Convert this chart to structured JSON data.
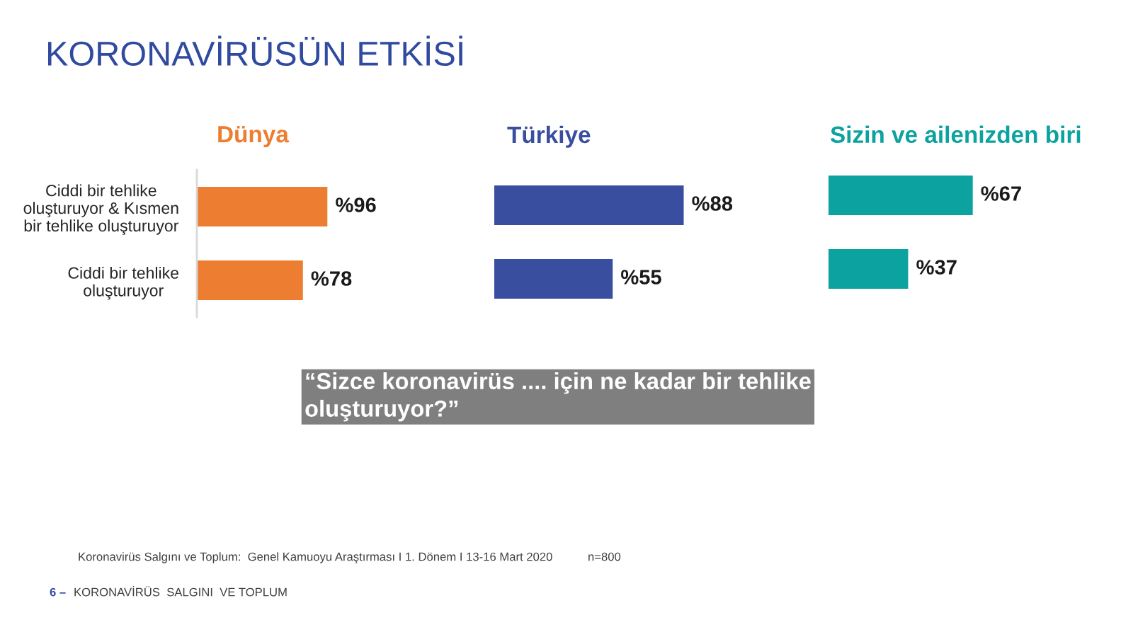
{
  "chart_data": [
    {
      "type": "bar",
      "orientation": "horizontal",
      "title": "Dünya",
      "categories": [
        "Ciddi bir tehlike\noluşturuyor & Kısmen\nbir tehlike oluşturuyor",
        "Ciddi bir tehlike\noluşturuyor"
      ],
      "values": [
        96,
        78
      ],
      "color": "#ed7d31",
      "value_labels": [
        "%96",
        "%78"
      ],
      "tick_labels": "y",
      "annotations": [
        "KORONAVİRÜSÜN ETKİSİ",
        "“Sizce koronavirüs .... için ne kadar bir tehlike\noluşturuyor?”",
        "Koronavirüs Salgını ve Toplum:  Genel Kamuoyu Araştırması I 1. Dönem I 13-16 Mart 2020",
        "n=800",
        "6 –",
        "KORONAVİRÜS  SALGINI  VE TOPLUM"
      ]
    },
    {
      "type": "bar",
      "orientation": "horizontal",
      "title": "Türkiye",
      "categories": [
        null,
        null
      ],
      "values": [
        88,
        55
      ],
      "color": "#3a4e9f",
      "value_labels": [
        "%88",
        "%55"
      ],
      "tick_labels": false
    },
    {
      "type": "bar",
      "orientation": "horizontal",
      "title": "Sizin ve ailenizden biri",
      "categories": [
        null,
        null
      ],
      "values": [
        67,
        37
      ],
      "color": "#0ba29f",
      "value_labels": [
        "%67",
        "%37"
      ],
      "tick_labels": false
    }
  ]
}
